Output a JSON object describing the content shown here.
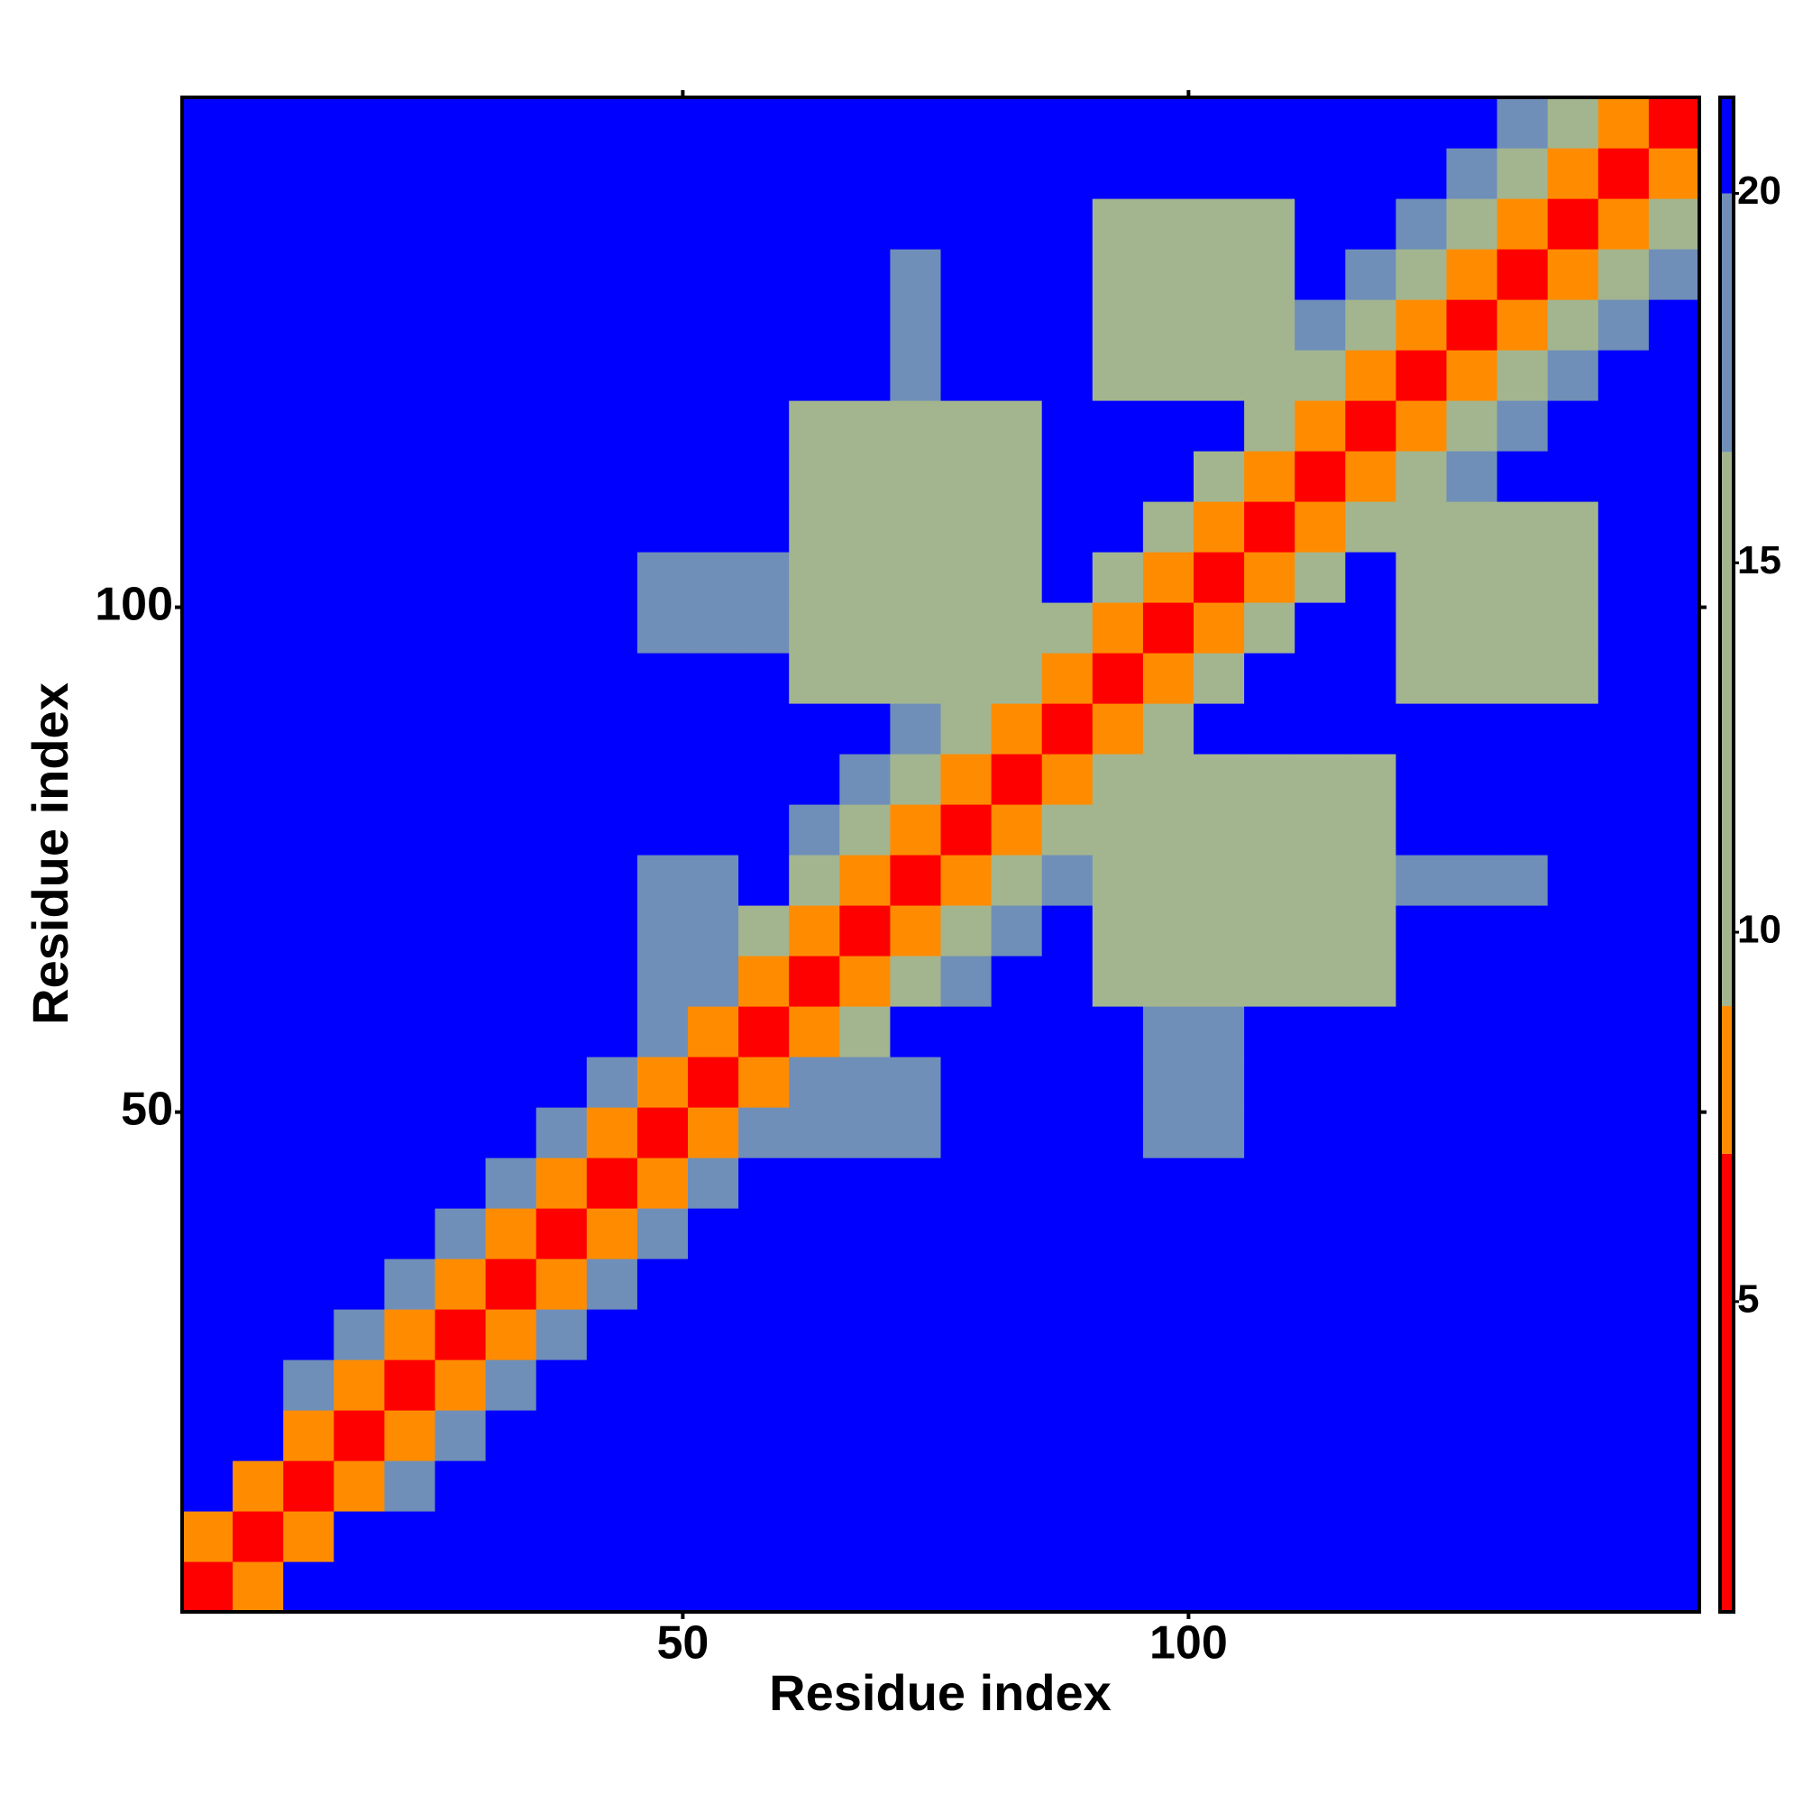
{
  "chart_data": {
    "type": "heatmap",
    "xlabel": "Residue index",
    "ylabel": "Residue index",
    "x": [
      3,
      8,
      13,
      18,
      23,
      28,
      33,
      38,
      43,
      48,
      53,
      58,
      63,
      68,
      73,
      78,
      83,
      88,
      93,
      98,
      103,
      108,
      113,
      118,
      123,
      128,
      133,
      138,
      143,
      148
    ],
    "y": [
      3,
      8,
      13,
      18,
      23,
      28,
      33,
      38,
      43,
      48,
      53,
      58,
      63,
      68,
      73,
      78,
      83,
      88,
      93,
      98,
      103,
      108,
      113,
      118,
      123,
      128,
      133,
      138,
      143,
      148
    ],
    "cell_size": 5,
    "xlim": [
      0.5,
      150.5
    ],
    "ylim": [
      0.5,
      150.5
    ],
    "xticks": [
      50,
      100
    ],
    "yticks": [
      50,
      100
    ],
    "zlim": [
      0.8,
      21.3
    ],
    "zticks": [
      5,
      10,
      15,
      20
    ],
    "color_bins": [
      0.8,
      7,
      9,
      16.5,
      20,
      21.3
    ],
    "colors": [
      "#ff0000",
      "#ff8c00",
      "#a3b58f",
      "#6f8fb8",
      "#0000ff"
    ],
    "z": [
      [
        2,
        8,
        21,
        21,
        21,
        21,
        21,
        21,
        21,
        21,
        21,
        21,
        21,
        21,
        21,
        21,
        21,
        21,
        21,
        21,
        21,
        21,
        21,
        21,
        21,
        21,
        21,
        21,
        21,
        21
      ],
      [
        8,
        2,
        8,
        21,
        21,
        21,
        21,
        21,
        21,
        21,
        21,
        21,
        21,
        21,
        21,
        21,
        21,
        21,
        21,
        21,
        21,
        21,
        21,
        21,
        21,
        21,
        21,
        21,
        21,
        21
      ],
      [
        21,
        8,
        2,
        8,
        17,
        21,
        21,
        21,
        21,
        21,
        21,
        21,
        21,
        21,
        21,
        21,
        21,
        21,
        21,
        21,
        21,
        21,
        21,
        21,
        21,
        21,
        21,
        21,
        21,
        21
      ],
      [
        21,
        21,
        8,
        2,
        8,
        17,
        21,
        21,
        21,
        21,
        21,
        21,
        21,
        21,
        21,
        21,
        21,
        21,
        21,
        21,
        21,
        21,
        21,
        21,
        21,
        21,
        21,
        21,
        21,
        21
      ],
      [
        21,
        21,
        17,
        8,
        2,
        8,
        17,
        21,
        21,
        21,
        21,
        21,
        21,
        21,
        21,
        21,
        21,
        21,
        21,
        21,
        21,
        21,
        21,
        21,
        21,
        21,
        21,
        21,
        21,
        21
      ],
      [
        21,
        21,
        21,
        17,
        8,
        2,
        8,
        17,
        21,
        21,
        21,
        21,
        21,
        21,
        21,
        21,
        21,
        21,
        21,
        21,
        21,
        21,
        21,
        21,
        21,
        21,
        21,
        21,
        21,
        21
      ],
      [
        21,
        21,
        21,
        21,
        17,
        8,
        2,
        8,
        17,
        21,
        21,
        21,
        21,
        21,
        21,
        21,
        21,
        21,
        21,
        21,
        21,
        21,
        21,
        21,
        21,
        21,
        21,
        21,
        21,
        21
      ],
      [
        21,
        21,
        21,
        21,
        21,
        17,
        8,
        2,
        8,
        17,
        21,
        21,
        21,
        21,
        21,
        21,
        21,
        21,
        21,
        21,
        21,
        21,
        21,
        21,
        21,
        21,
        21,
        21,
        21,
        21
      ],
      [
        21,
        21,
        21,
        21,
        21,
        21,
        17,
        8,
        2,
        8,
        17,
        21,
        21,
        21,
        21,
        21,
        21,
        21,
        21,
        21,
        21,
        21,
        21,
        21,
        21,
        21,
        21,
        21,
        21,
        21
      ],
      [
        21,
        21,
        21,
        21,
        21,
        21,
        21,
        17,
        8,
        2,
        8,
        17,
        17,
        17,
        17,
        21,
        21,
        21,
        21,
        19,
        19,
        21,
        21,
        21,
        21,
        21,
        21,
        21,
        21,
        21
      ],
      [
        21,
        21,
        21,
        21,
        21,
        21,
        21,
        21,
        17,
        8,
        2,
        8,
        17,
        17,
        17,
        21,
        21,
        21,
        21,
        19,
        19,
        21,
        21,
        21,
        21,
        21,
        21,
        21,
        21,
        21
      ],
      [
        21,
        21,
        21,
        21,
        21,
        21,
        21,
        21,
        21,
        17,
        8,
        2,
        8,
        13,
        21,
        21,
        21,
        21,
        21,
        19,
        19,
        21,
        21,
        21,
        21,
        21,
        21,
        21,
        21,
        21
      ],
      [
        21,
        21,
        21,
        21,
        21,
        21,
        21,
        21,
        21,
        17,
        17,
        8,
        2,
        8,
        13,
        17,
        21,
        21,
        15,
        15,
        15,
        15,
        15,
        15,
        21,
        21,
        21,
        21,
        21,
        21
      ],
      [
        21,
        21,
        21,
        21,
        21,
        21,
        21,
        21,
        21,
        17,
        17,
        13,
        8,
        2,
        8,
        13,
        17,
        21,
        15,
        15,
        15,
        15,
        15,
        15,
        21,
        21,
        21,
        21,
        21,
        21
      ],
      [
        21,
        21,
        21,
        21,
        21,
        21,
        21,
        21,
        21,
        17,
        17,
        21,
        13,
        8,
        2,
        8,
        13,
        17,
        15,
        15,
        15,
        15,
        15,
        15,
        18,
        18,
        18,
        21,
        21,
        21
      ],
      [
        21,
        21,
        21,
        21,
        21,
        21,
        21,
        21,
        21,
        21,
        21,
        21,
        17,
        13,
        8,
        2,
        8,
        13,
        15,
        15,
        15,
        15,
        15,
        15,
        21,
        21,
        21,
        21,
        21,
        21
      ],
      [
        21,
        21,
        21,
        21,
        21,
        21,
        21,
        21,
        21,
        21,
        21,
        21,
        21,
        17,
        13,
        8,
        2,
        8,
        13,
        15,
        15,
        15,
        15,
        15,
        21,
        21,
        21,
        21,
        21,
        21
      ],
      [
        21,
        21,
        21,
        21,
        21,
        21,
        21,
        21,
        21,
        21,
        21,
        21,
        21,
        21,
        17,
        13,
        8,
        2,
        8,
        13,
        21,
        21,
        21,
        21,
        21,
        21,
        21,
        21,
        21,
        21
      ],
      [
        21,
        21,
        21,
        21,
        21,
        21,
        21,
        21,
        21,
        21,
        21,
        21,
        15,
        15,
        15,
        15,
        13,
        8,
        2,
        8,
        13,
        21,
        21,
        21,
        16,
        16,
        16,
        16,
        21,
        21
      ],
      [
        21,
        21,
        21,
        21,
        21,
        21,
        21,
        21,
        21,
        19,
        19,
        19,
        15,
        15,
        15,
        15,
        15,
        13,
        8,
        2,
        8,
        13,
        21,
        21,
        16,
        16,
        16,
        16,
        21,
        21
      ],
      [
        21,
        21,
        21,
        21,
        21,
        21,
        21,
        21,
        21,
        19,
        19,
        19,
        15,
        15,
        15,
        15,
        15,
        21,
        13,
        8,
        2,
        8,
        13,
        21,
        16,
        16,
        16,
        16,
        21,
        21
      ],
      [
        21,
        21,
        21,
        21,
        21,
        21,
        21,
        21,
        21,
        21,
        21,
        21,
        15,
        15,
        15,
        15,
        15,
        21,
        21,
        13,
        8,
        2,
        8,
        13,
        16,
        16,
        16,
        16,
        21,
        21
      ],
      [
        21,
        21,
        21,
        21,
        21,
        21,
        21,
        21,
        21,
        21,
        21,
        21,
        15,
        15,
        15,
        15,
        15,
        21,
        21,
        21,
        13,
        8,
        2,
        8,
        13,
        17,
        21,
        21,
        21,
        21
      ],
      [
        21,
        21,
        21,
        21,
        21,
        21,
        21,
        21,
        21,
        21,
        21,
        21,
        15,
        15,
        15,
        15,
        15,
        21,
        21,
        21,
        21,
        13,
        8,
        2,
        8,
        13,
        17,
        21,
        21,
        21
      ],
      [
        21,
        21,
        21,
        21,
        21,
        21,
        21,
        21,
        21,
        21,
        21,
        21,
        21,
        21,
        18,
        21,
        21,
        21,
        16,
        16,
        16,
        16,
        13,
        8,
        2,
        8,
        13,
        17,
        21,
        21
      ],
      [
        21,
        21,
        21,
        21,
        21,
        21,
        21,
        21,
        21,
        21,
        21,
        21,
        21,
        21,
        18,
        21,
        21,
        21,
        16,
        16,
        16,
        16,
        17,
        13,
        8,
        2,
        8,
        13,
        17,
        21
      ],
      [
        21,
        21,
        21,
        21,
        21,
        21,
        21,
        21,
        21,
        21,
        21,
        21,
        21,
        21,
        18,
        21,
        21,
        21,
        16,
        16,
        16,
        16,
        21,
        17,
        13,
        8,
        2,
        8,
        13,
        17
      ],
      [
        21,
        21,
        21,
        21,
        21,
        21,
        21,
        21,
        21,
        21,
        21,
        21,
        21,
        21,
        21,
        21,
        21,
        21,
        16,
        16,
        16,
        16,
        21,
        21,
        17,
        13,
        8,
        2,
        8,
        13
      ],
      [
        21,
        21,
        21,
        21,
        21,
        21,
        21,
        21,
        21,
        21,
        21,
        21,
        21,
        21,
        21,
        21,
        21,
        21,
        21,
        21,
        21,
        21,
        21,
        21,
        21,
        17,
        13,
        8,
        2,
        8
      ],
      [
        21,
        21,
        21,
        21,
        21,
        21,
        21,
        21,
        21,
        21,
        21,
        21,
        21,
        21,
        21,
        21,
        21,
        21,
        21,
        21,
        21,
        21,
        21,
        21,
        21,
        21,
        17,
        13,
        8,
        2
      ]
    ]
  }
}
